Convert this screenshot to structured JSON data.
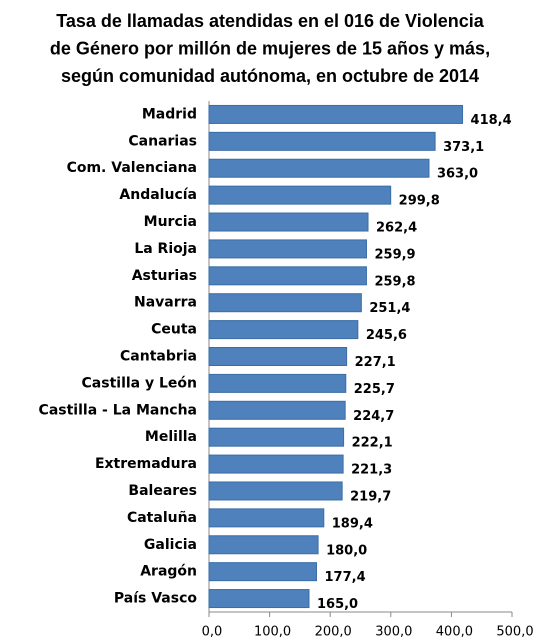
{
  "chart_data": {
    "type": "bar",
    "orientation": "horizontal",
    "title": [
      "Tasa de llamadas atendidas en el 016 de Violencia",
      "de Género por millón de mujeres de 15 años y más,",
      "según comunidad autónoma, en octubre de 2014"
    ],
    "categories": [
      "Madrid",
      "Canarias",
      "Com. Valenciana",
      "Andalucía",
      "Murcia",
      "La Rioja",
      "Asturias",
      "Navarra",
      "Ceuta",
      "Cantabria",
      "Castilla y León",
      "Castilla - La Mancha",
      "Melilla",
      "Extremadura",
      "Baleares",
      "Cataluña",
      "Galicia",
      "Aragón",
      "País Vasco"
    ],
    "values": [
      418.4,
      373.1,
      363.0,
      299.8,
      262.4,
      259.9,
      259.8,
      251.4,
      245.6,
      227.1,
      225.7,
      224.7,
      222.1,
      221.3,
      219.7,
      189.4,
      180.0,
      177.4,
      165.0
    ],
    "value_labels": [
      "418,4",
      "373,1",
      "363,0",
      "299,8",
      "262,4",
      "259,9",
      "259,8",
      "251,4",
      "245,6",
      "227,1",
      "225,7",
      "224,7",
      "222,1",
      "221,3",
      "219,7",
      "189,4",
      "180,0",
      "177,4",
      "165,0"
    ],
    "color": "#4f81bd",
    "xlim": [
      0,
      500
    ],
    "xticks": [
      {
        "value": 0,
        "label": "0,0"
      },
      {
        "value": 100,
        "label": "100,0"
      },
      {
        "value": 200,
        "label": "200,0"
      },
      {
        "value": 300,
        "label": "300,0"
      },
      {
        "value": 400,
        "label": "400,0"
      },
      {
        "value": 500,
        "label": "500,0"
      }
    ],
    "grid": false
  }
}
